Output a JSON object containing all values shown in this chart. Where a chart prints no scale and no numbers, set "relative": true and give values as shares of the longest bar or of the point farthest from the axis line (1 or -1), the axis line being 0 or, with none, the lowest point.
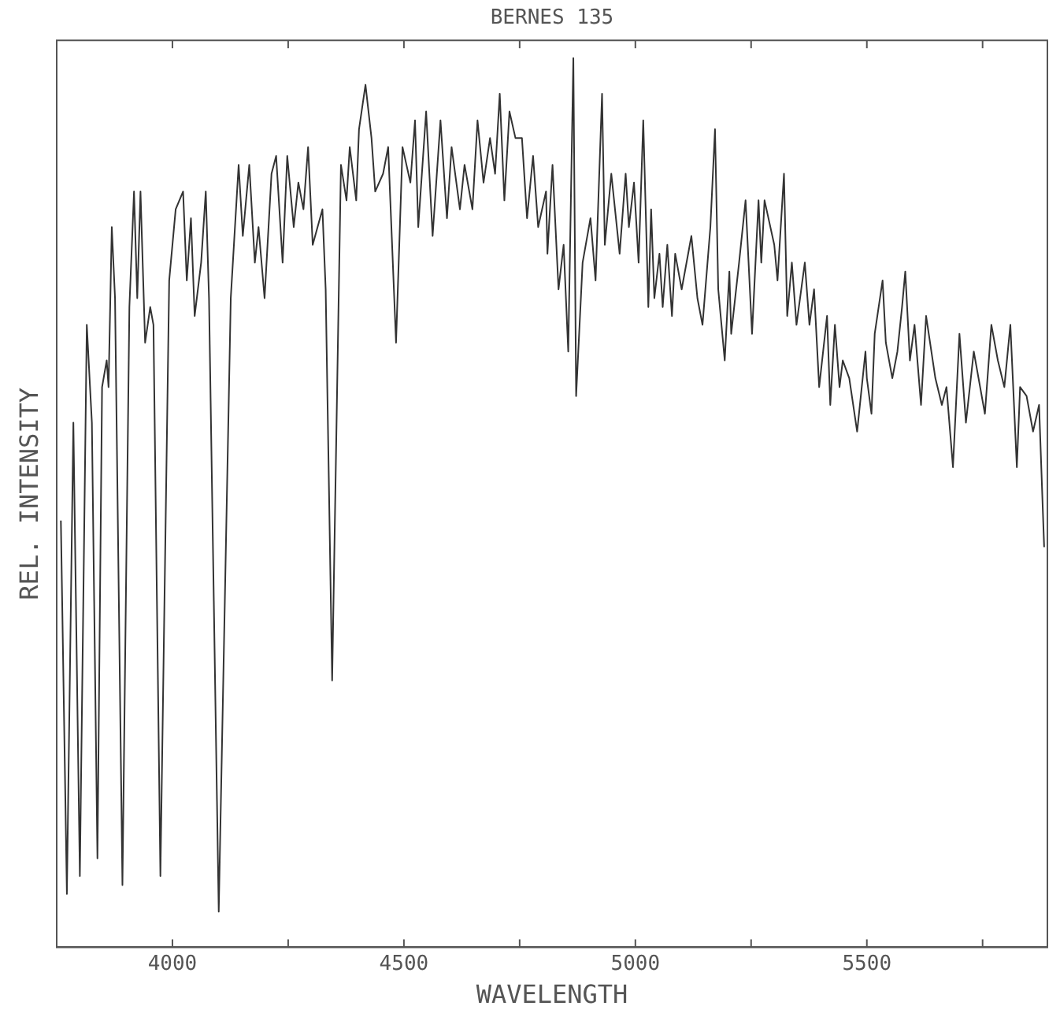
{
  "chart_data": {
    "type": "line",
    "title": "BERNES 135",
    "xlabel": "WAVELENGTH",
    "ylabel": "REL. INTENSITY",
    "relative": true,
    "xlim": [
      3750,
      5890
    ],
    "xticks": [
      4000,
      {
        "value": 4250,
        "label": null
      },
      4500,
      {
        "value": 4750,
        "label": null
      },
      5000,
      {
        "value": 5250,
        "label": null
      },
      5500,
      {
        "value": 5750,
        "label": null
      }
    ],
    "marker": "none",
    "line_style": "solid",
    "grid": false,
    "legend": false,
    "series": [
      {
        "color": "#333333",
        "x": [
          3759,
          3772,
          3786,
          3800,
          3815,
          3826,
          3838,
          3848,
          3858,
          3862,
          3869,
          3876,
          3892,
          3907,
          3917,
          3924,
          3931,
          3941,
          3952,
          3959,
          3974,
          3993,
          4007,
          4023,
          4031,
          4040,
          4048,
          4062,
          4072,
          4079,
          4100,
          4126,
          4143,
          4152,
          4166,
          4178,
          4186,
          4199,
          4214,
          4224,
          4238,
          4248,
          4262,
          4272,
          4283,
          4293,
          4303,
          4324,
          4331,
          4345,
          4364,
          4376,
          4383,
          4397,
          4403,
          4417,
          4430,
          4438,
          4455,
          4466,
          4483,
          4497,
          4514,
          4524,
          4531,
          4548,
          4562,
          4579,
          4593,
          4603,
          4621,
          4631,
          4648,
          4659,
          4672,
          4686,
          4697,
          4707,
          4717,
          4728,
          4741,
          4755,
          4766,
          4779,
          4790,
          4807,
          4810,
          4821,
          4834,
          4845,
          4855,
          4866,
          4872,
          4886,
          4903,
          4914,
          4928,
          4934,
          4948,
          4966,
          4979,
          4986,
          4997,
          5007,
          5017,
          5028,
          5034,
          5041,
          5052,
          5059,
          5069,
          5079,
          5086,
          5100,
          5121,
          5134,
          5145,
          5162,
          5172,
          5179,
          5193,
          5203,
          5207,
          5224,
          5238,
          5252,
          5266,
          5272,
          5279,
          5300,
          5307,
          5321,
          5328,
          5338,
          5348,
          5366,
          5376,
          5386,
          5397,
          5414,
          5421,
          5431,
          5441,
          5448,
          5462,
          5479,
          5497,
          5500,
          5510,
          5517,
          5534,
          5541,
          5555,
          5566,
          5576,
          5583,
          5593,
          5603,
          5617,
          5628,
          5648,
          5662,
          5672,
          5686,
          5700,
          5714,
          5731,
          5755,
          5769,
          5783,
          5797,
          5810,
          5824,
          5831,
          5845,
          5859,
          5872,
          5883
        ],
        "values": [
          0.48,
          0.06,
          0.59,
          0.08,
          0.7,
          0.59,
          0.1,
          0.63,
          0.66,
          0.63,
          0.81,
          0.73,
          0.07,
          0.72,
          0.85,
          0.73,
          0.85,
          0.68,
          0.72,
          0.7,
          0.08,
          0.75,
          0.83,
          0.85,
          0.75,
          0.82,
          0.71,
          0.77,
          0.85,
          0.73,
          0.04,
          0.73,
          0.88,
          0.8,
          0.88,
          0.77,
          0.81,
          0.73,
          0.87,
          0.89,
          0.77,
          0.89,
          0.81,
          0.86,
          0.83,
          0.9,
          0.79,
          0.83,
          0.74,
          0.3,
          0.88,
          0.84,
          0.9,
          0.84,
          0.92,
          0.97,
          0.91,
          0.85,
          0.87,
          0.9,
          0.68,
          0.9,
          0.86,
          0.93,
          0.81,
          0.94,
          0.8,
          0.93,
          0.82,
          0.9,
          0.83,
          0.88,
          0.83,
          0.93,
          0.86,
          0.91,
          0.87,
          0.96,
          0.84,
          0.94,
          0.91,
          0.91,
          0.82,
          0.89,
          0.81,
          0.85,
          0.78,
          0.88,
          0.74,
          0.79,
          0.67,
          1.0,
          0.62,
          0.77,
          0.82,
          0.75,
          0.96,
          0.79,
          0.87,
          0.78,
          0.87,
          0.81,
          0.86,
          0.77,
          0.93,
          0.72,
          0.83,
          0.73,
          0.78,
          0.72,
          0.79,
          0.71,
          0.78,
          0.74,
          0.8,
          0.73,
          0.7,
          0.81,
          0.92,
          0.74,
          0.66,
          0.76,
          0.69,
          0.77,
          0.84,
          0.69,
          0.84,
          0.77,
          0.84,
          0.79,
          0.75,
          0.87,
          0.71,
          0.77,
          0.7,
          0.77,
          0.7,
          0.74,
          0.63,
          0.71,
          0.61,
          0.7,
          0.63,
          0.66,
          0.64,
          0.58,
          0.67,
          0.64,
          0.6,
          0.69,
          0.75,
          0.68,
          0.64,
          0.67,
          0.72,
          0.76,
          0.66,
          0.7,
          0.61,
          0.71,
          0.64,
          0.61,
          0.63,
          0.54,
          0.69,
          0.59,
          0.67,
          0.6,
          0.7,
          0.66,
          0.63,
          0.7,
          0.54,
          0.63,
          0.62,
          0.58,
          0.61,
          0.45
        ]
      }
    ]
  }
}
